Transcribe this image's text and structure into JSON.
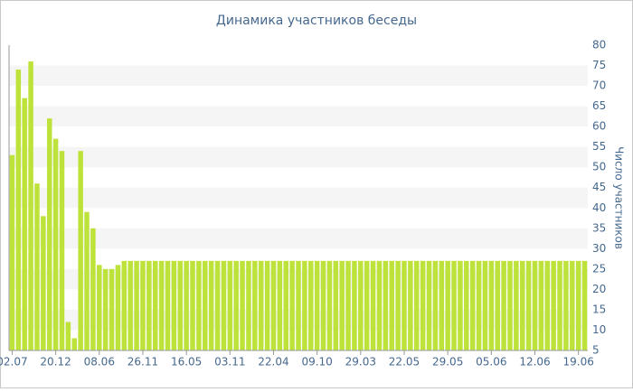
{
  "chart_data": {
    "type": "bar",
    "title": "Динамика участников беседы",
    "y_label": "Число участников",
    "categories": [
      "02.07",
      null,
      null,
      null,
      null,
      null,
      null,
      "20.12",
      null,
      null,
      null,
      null,
      null,
      null,
      "08.06",
      null,
      null,
      null,
      null,
      null,
      null,
      "26.11",
      null,
      null,
      null,
      null,
      null,
      null,
      "16.05",
      null,
      null,
      null,
      null,
      null,
      null,
      "03.11",
      null,
      null,
      null,
      null,
      null,
      null,
      "22.04",
      null,
      null,
      null,
      null,
      null,
      null,
      "09.10",
      null,
      null,
      null,
      null,
      null,
      null,
      "29.03",
      null,
      null,
      null,
      null,
      null,
      null,
      "22.05",
      null,
      null,
      null,
      null,
      null,
      null,
      "29.05",
      null,
      null,
      null,
      null,
      null,
      null,
      "05.06",
      null,
      null,
      null,
      null,
      null,
      null,
      "12.06",
      null,
      null,
      null,
      null,
      null,
      null,
      "19.06",
      null
    ],
    "values": [
      53,
      74,
      67,
      76,
      46,
      38,
      62,
      57,
      54,
      12,
      8,
      54,
      39,
      35,
      26,
      25,
      25,
      26,
      27,
      27,
      27,
      27,
      27,
      27,
      27,
      27,
      27,
      27,
      27,
      27,
      27,
      27,
      27,
      27,
      27,
      27,
      27,
      27,
      27,
      27,
      27,
      27,
      27,
      27,
      27,
      27,
      27,
      27,
      27,
      27,
      27,
      27,
      27,
      27,
      27,
      27,
      27,
      27,
      27,
      27,
      27,
      27,
      27,
      27,
      27,
      27,
      27,
      27,
      27,
      27,
      27,
      27,
      27,
      27,
      27,
      27,
      27,
      27,
      27,
      27,
      27,
      27,
      27,
      27,
      27,
      27,
      27,
      27,
      27,
      27,
      27,
      27,
      27
    ],
    "color": "#bde33a",
    "ylim": [
      5,
      80
    ],
    "yticks": [
      5,
      10,
      15,
      20,
      25,
      30,
      35,
      40,
      45,
      50,
      55,
      60,
      65,
      70,
      75,
      80
    ],
    "grid": "bands"
  }
}
